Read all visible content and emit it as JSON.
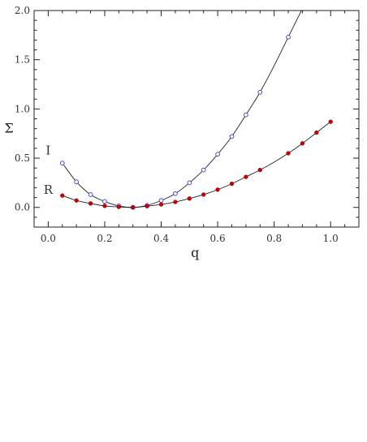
{
  "chart_data": {
    "type": "scatter",
    "xlabel": "q",
    "ylabel": "Σ",
    "xlim": [
      -0.05,
      1.1
    ],
    "ylim": [
      -0.2,
      2.0
    ],
    "x_ticks": [
      0.0,
      0.2,
      0.4,
      0.6,
      0.8,
      1.0
    ],
    "y_ticks": [
      0.0,
      0.5,
      1.0,
      1.5,
      2.0
    ],
    "x_tick_labels": [
      "0.0",
      "0.2",
      "0.4",
      "0.6",
      "0.8",
      "1.0"
    ],
    "y_tick_labels": [
      "0.0",
      "0.5",
      "1.0",
      "1.5",
      "2.0"
    ],
    "grid": false,
    "series": [
      {
        "name": "I",
        "marker": "open-circle",
        "color": "#4a4ad0",
        "label_at": [
          0.0,
          0.58
        ],
        "x": [
          0.05,
          0.1,
          0.15,
          0.2,
          0.25,
          0.3,
          0.35,
          0.4,
          0.45,
          0.5,
          0.55,
          0.6,
          0.65,
          0.7,
          0.75,
          0.85
        ],
        "values": [
          0.45,
          0.26,
          0.13,
          0.06,
          0.015,
          0.0,
          0.02,
          0.07,
          0.14,
          0.25,
          0.38,
          0.54,
          0.72,
          0.94,
          1.17,
          1.73
        ],
        "curve_x": [
          0.05,
          0.1,
          0.15,
          0.2,
          0.25,
          0.3,
          0.35,
          0.4,
          0.45,
          0.5,
          0.55,
          0.6,
          0.65,
          0.7,
          0.75,
          0.8,
          0.85,
          0.9
        ],
        "curve_y": [
          0.45,
          0.26,
          0.13,
          0.06,
          0.015,
          0.0,
          0.02,
          0.07,
          0.14,
          0.25,
          0.38,
          0.54,
          0.72,
          0.94,
          1.17,
          1.44,
          1.73,
          2.02
        ]
      },
      {
        "name": "R",
        "marker": "filled-circle",
        "color": "#cc0000",
        "label_at": [
          0.0,
          0.18
        ],
        "x": [
          0.05,
          0.1,
          0.15,
          0.2,
          0.25,
          0.3,
          0.35,
          0.4,
          0.45,
          0.5,
          0.55,
          0.6,
          0.65,
          0.7,
          0.75,
          0.85,
          0.9,
          0.95,
          1.0
        ],
        "values": [
          0.12,
          0.07,
          0.04,
          0.015,
          0.005,
          0.0,
          0.012,
          0.03,
          0.055,
          0.09,
          0.13,
          0.18,
          0.24,
          0.31,
          0.38,
          0.55,
          0.65,
          0.76,
          0.87
        ],
        "curve_x": [
          0.05,
          0.1,
          0.15,
          0.2,
          0.25,
          0.3,
          0.35,
          0.4,
          0.45,
          0.5,
          0.55,
          0.6,
          0.65,
          0.7,
          0.75,
          0.8,
          0.85,
          0.9,
          0.95,
          1.0
        ],
        "curve_y": [
          0.12,
          0.07,
          0.04,
          0.015,
          0.005,
          0.0,
          0.012,
          0.03,
          0.055,
          0.09,
          0.13,
          0.18,
          0.24,
          0.31,
          0.38,
          0.46,
          0.55,
          0.65,
          0.76,
          0.87
        ]
      }
    ]
  }
}
